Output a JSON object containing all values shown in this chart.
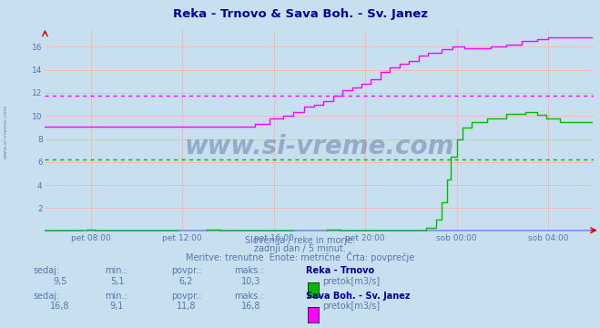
{
  "title": "Reka - Trnovo & Sava Boh. - Sv. Janez",
  "title_color": "#000099",
  "bg_color": "#c8dff0",
  "plot_bg_color": "#c8dff0",
  "ylim": [
    0,
    17.5
  ],
  "xlim": [
    0,
    288
  ],
  "xtick_labels": [
    "pet 08:00",
    "pet 12:00",
    "pet 16:00",
    "pet 20:00",
    "sob 00:00",
    "sob 04:00"
  ],
  "xtick_positions": [
    24,
    72,
    120,
    168,
    216,
    264
  ],
  "ytick_positions": [
    2,
    4,
    6,
    8,
    10,
    12,
    14,
    16
  ],
  "ytick_labels": [
    "2",
    "4",
    "6",
    "8",
    "10",
    "12",
    "14",
    "16"
  ],
  "grid_color": "#ffb0b0",
  "line1_color": "#00bb00",
  "line1_avg": 6.2,
  "line2_color": "#ff00ff",
  "line2_avg": 11.8,
  "baseline_color": "#8888ff",
  "watermark": "www.si-vreme.com",
  "watermark_color": "#1a3a6a",
  "footer1": "Slovenija / reke in morje.",
  "footer2": "zadnji dan / 5 minut.",
  "footer3": "Meritve: trenutne  Enote: metrične  Črta: povprečje",
  "footer_color": "#5577aa",
  "bold_color": "#000099",
  "stat1_labels": [
    "sedaj:",
    "min.:",
    "povpr.:",
    "maks.:"
  ],
  "stat1_values": [
    "9,5",
    "5,1",
    "6,2",
    "10,3"
  ],
  "stat1_name": "Reka - Trnovo",
  "stat1_unit": "pretok[m3/s]",
  "stat2_labels": [
    "sedaj:",
    "min.:",
    "povpr.:",
    "maks.:"
  ],
  "stat2_values": [
    "16,8",
    "9,1",
    "11,8",
    "16,8"
  ],
  "stat2_name": "Sava Boh. - Sv. Janez",
  "stat2_unit": "pretok[m3/s]"
}
